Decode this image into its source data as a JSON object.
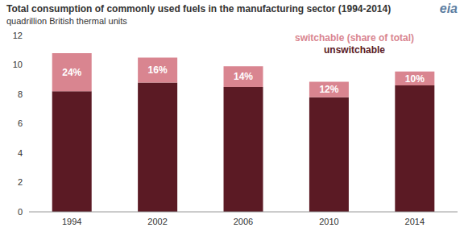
{
  "chart_data": {
    "type": "bar",
    "title": "Total consumption of commonly used fuels in the manufacturing sector (1994-2014)",
    "subtitle": "quadrillion British thermal units",
    "logo": "eia",
    "categories": [
      "1994",
      "2002",
      "2006",
      "2010",
      "2014"
    ],
    "series": [
      {
        "name": "unswitchable",
        "color": "#5b1a24",
        "values": [
          8.2,
          8.8,
          8.5,
          7.8,
          8.6
        ]
      },
      {
        "name": "switchable (share of total)",
        "color": "#d98590",
        "values": [
          2.6,
          1.7,
          1.4,
          1.05,
          0.95
        ],
        "share_labels": [
          "24%",
          "16%",
          "14%",
          "12%",
          "10%"
        ]
      }
    ],
    "stacked": true,
    "ylim": [
      0,
      12
    ],
    "yticks": [
      0,
      2,
      4,
      6,
      8,
      10,
      12
    ],
    "grid": false
  }
}
